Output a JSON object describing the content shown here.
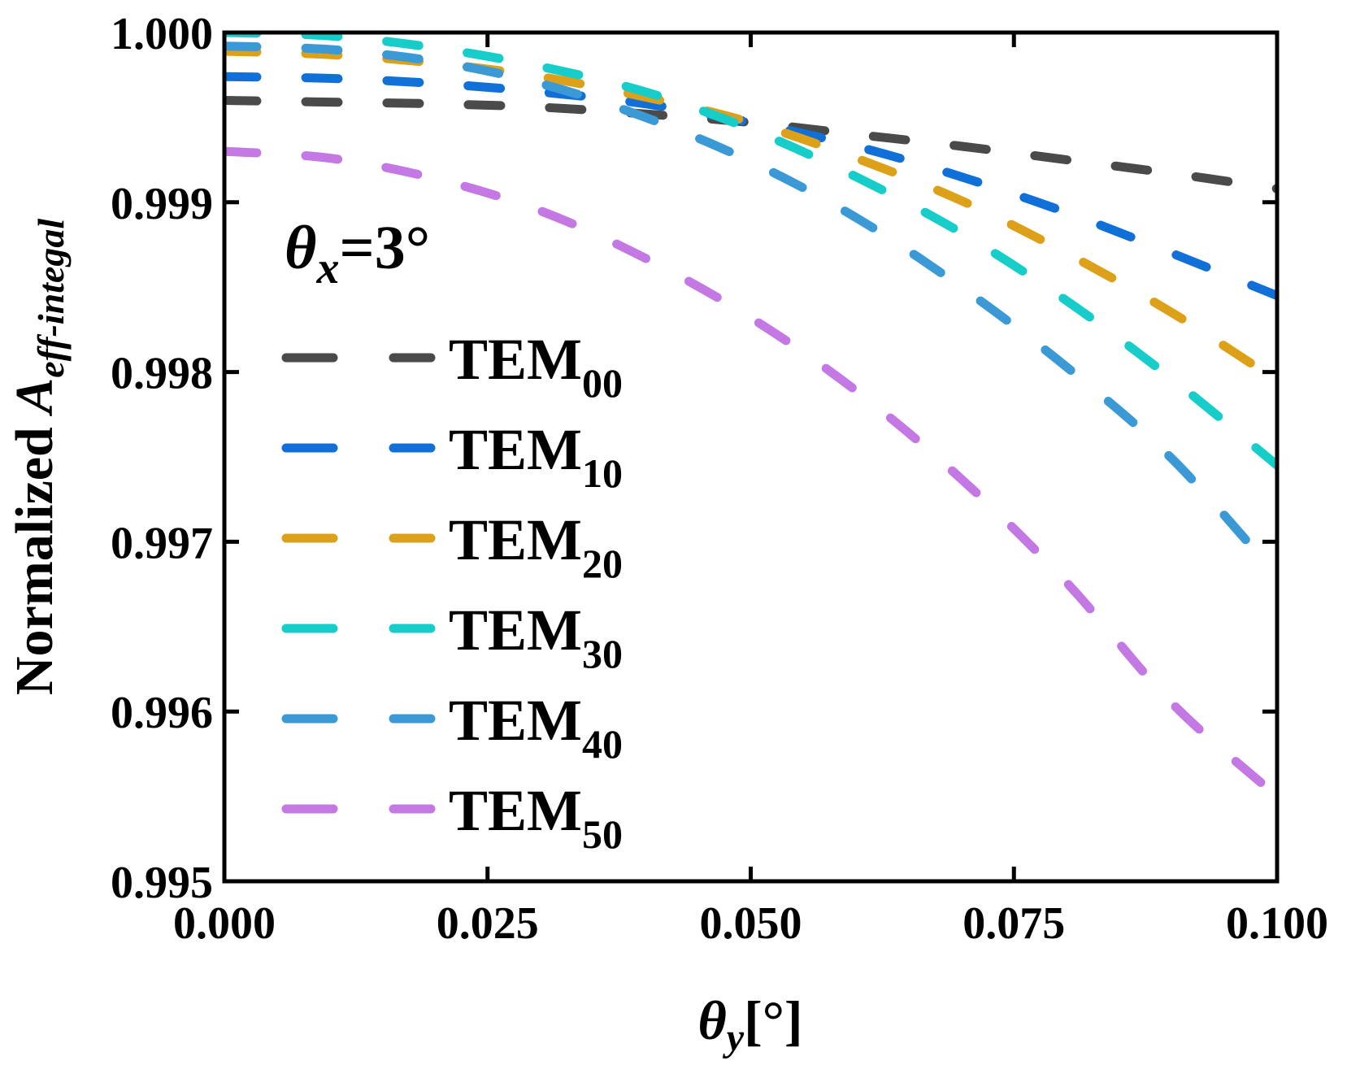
{
  "chart_data": {
    "type": "line",
    "title": "",
    "xlabel": {
      "symbol": "θ",
      "subscript": "y",
      "unit": "[°]"
    },
    "ylabel": {
      "prefix": "Normalized ",
      "symbol": "A",
      "subscript": "eff-integal"
    },
    "xlim": [
      0.0,
      0.1
    ],
    "ylim": [
      0.995,
      1.0
    ],
    "xticks": [
      "0.000",
      "0.025",
      "0.050",
      "0.075",
      "0.100"
    ],
    "yticks": [
      "0.995",
      "0.996",
      "0.997",
      "0.998",
      "0.999",
      "1.000"
    ],
    "annotation": {
      "symbol": "θ",
      "subscript": "x",
      "value": "=3°"
    },
    "legend_position": "left",
    "line_style": "dashed",
    "series": [
      {
        "name": "TEM",
        "sub": "00",
        "color": "#4a4a4a",
        "x": [
          0,
          0.01,
          0.02,
          0.03,
          0.04,
          0.05,
          0.06,
          0.07,
          0.08,
          0.09,
          0.1
        ],
        "y": [
          0.9996,
          0.99959,
          0.99958,
          0.99956,
          0.99952,
          0.99947,
          0.9994,
          0.99933,
          0.99925,
          0.99917,
          0.99908
        ]
      },
      {
        "name": "TEM",
        "sub": "10",
        "color": "#1170d8",
        "x": [
          0,
          0.01,
          0.02,
          0.03,
          0.04,
          0.05,
          0.06,
          0.07,
          0.08,
          0.09,
          0.1
        ],
        "y": [
          0.99974,
          0.99973,
          0.9997,
          0.99965,
          0.99958,
          0.99947,
          0.99933,
          0.99915,
          0.99894,
          0.9987,
          0.99845
        ]
      },
      {
        "name": "TEM",
        "sub": "20",
        "color": "#dca019",
        "x": [
          0,
          0.01,
          0.02,
          0.03,
          0.04,
          0.05,
          0.06,
          0.07,
          0.08,
          0.09,
          0.1
        ],
        "y": [
          0.99989,
          0.99987,
          0.99982,
          0.99974,
          0.99962,
          0.99947,
          0.99926,
          0.99901,
          0.9987,
          0.99835,
          0.99795
        ]
      },
      {
        "name": "TEM",
        "sub": "30",
        "color": "#17cdca",
        "x": [
          0,
          0.01,
          0.02,
          0.03,
          0.04,
          0.05,
          0.06,
          0.07,
          0.08,
          0.09,
          0.1
        ],
        "y": [
          1.0,
          0.99998,
          0.99991,
          0.9998,
          0.99965,
          0.99943,
          0.99915,
          0.99882,
          0.99842,
          0.99796,
          0.99745
        ]
      },
      {
        "name": "TEM",
        "sub": "40",
        "color": "#3b9ad6",
        "x": [
          0,
          0.01,
          0.02,
          0.03,
          0.04,
          0.05,
          0.06,
          0.07,
          0.08,
          0.09,
          0.1
        ],
        "y": [
          0.99992,
          0.9999,
          0.99983,
          0.9997,
          0.9995,
          0.99924,
          0.99891,
          0.9985,
          0.99803,
          0.99749,
          0.9968
        ]
      },
      {
        "name": "TEM",
        "sub": "50",
        "color": "#c478e3",
        "x": [
          0,
          0.01,
          0.02,
          0.03,
          0.04,
          0.05,
          0.06,
          0.07,
          0.08,
          0.09,
          0.1
        ],
        "y": [
          0.9993,
          0.99926,
          0.99914,
          0.99895,
          0.99867,
          0.99832,
          0.99789,
          0.99737,
          0.99676,
          0.99605,
          0.9955
        ]
      }
    ]
  }
}
